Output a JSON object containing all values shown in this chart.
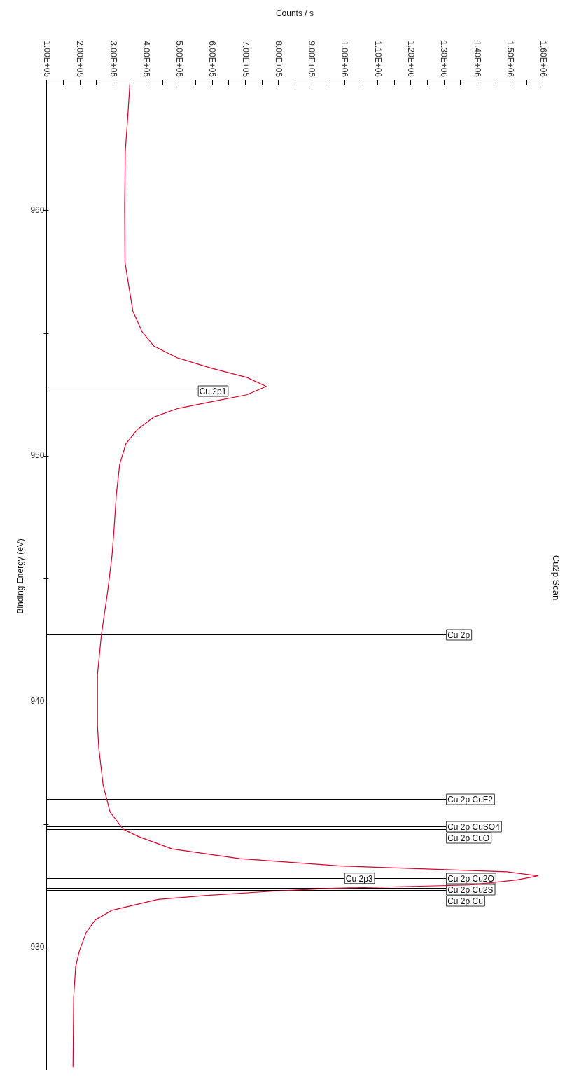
{
  "chart_data": {
    "type": "line",
    "orientation": "horizontal",
    "title": "Cu2p Scan",
    "xlabel": "Counts / s",
    "ylabel": "Binding Energy (eV)",
    "xlim": [
      100000,
      1600000
    ],
    "xticks": [
      {
        "value": 100000,
        "label": "1.00E+05"
      },
      {
        "value": 150000,
        "label": null
      },
      {
        "value": 200000,
        "label": "2.00E+05"
      },
      {
        "value": 250000,
        "label": null
      },
      {
        "value": 300000,
        "label": "3.00E+05"
      },
      {
        "value": 350000,
        "label": null
      },
      {
        "value": 400000,
        "label": "4.00E+05"
      },
      {
        "value": 450000,
        "label": null
      },
      {
        "value": 500000,
        "label": "5.00E+05"
      },
      {
        "value": 550000,
        "label": null
      },
      {
        "value": 600000,
        "label": "6.00E+05"
      },
      {
        "value": 650000,
        "label": null
      },
      {
        "value": 700000,
        "label": "7.00E+05"
      },
      {
        "value": 750000,
        "label": null
      },
      {
        "value": 800000,
        "label": "8.00E+05"
      },
      {
        "value": 850000,
        "label": null
      },
      {
        "value": 900000,
        "label": "9.00E+05"
      },
      {
        "value": 950000,
        "label": null
      },
      {
        "value": 1000000,
        "label": "1.00E+06"
      },
      {
        "value": 1050000,
        "label": null
      },
      {
        "value": 1100000,
        "label": "1.10E+06"
      },
      {
        "value": 1150000,
        "label": null
      },
      {
        "value": 1200000,
        "label": "1.20E+06"
      },
      {
        "value": 1250000,
        "label": null
      },
      {
        "value": 1300000,
        "label": "1.30E+06"
      },
      {
        "value": 1350000,
        "label": null
      },
      {
        "value": 1400000,
        "label": "1.40E+06"
      },
      {
        "value": 1450000,
        "label": null
      },
      {
        "value": 1500000,
        "label": "1.50E+06"
      },
      {
        "value": 1550000,
        "label": null
      },
      {
        "value": 1600000,
        "label": "1.60E+06"
      }
    ],
    "ylim": [
      925,
      965.2
    ],
    "yticks": [
      930,
      {
        "value": 935,
        "label": null
      },
      940,
      {
        "value": 945,
        "label": null
      },
      950,
      {
        "value": 955,
        "label": null
      },
      960
    ],
    "grid": false,
    "legend": false,
    "marker": "none",
    "line_style": "solid",
    "series": [
      {
        "color": "#d8002a",
        "x": [
          965.2,
          963.9,
          962.4,
          960.2,
          957.9,
          956.8,
          955.9,
          955.05,
          954.48,
          954.0,
          953.57,
          953.2,
          952.83,
          952.49,
          952.21,
          951.92,
          951.58,
          951.07,
          950.5,
          949.65,
          948.43,
          947.0,
          945.95,
          944.5,
          942.74,
          941.1,
          939.0,
          938.1,
          936.6,
          935.5,
          934.8,
          934.5,
          934.0,
          933.6,
          933.3,
          933.07,
          932.9,
          932.73,
          932.53,
          932.39,
          932.28,
          932.1,
          931.94,
          931.5,
          931.1,
          930.6,
          929.83,
          929.2,
          927.96,
          925.1
        ],
        "values": [
          352000,
          346000,
          338000,
          336000,
          337000,
          350000,
          361000,
          389000,
          424000,
          494000,
          599000,
          705000,
          764000,
          705000,
          599000,
          494000,
          424000,
          374000,
          340000,
          321000,
          311000,
          304000,
          298000,
          285000,
          266000,
          254000,
          254000,
          258000,
          271000,
          292000,
          332000,
          378000,
          479000,
          684000,
          989000,
          1491000,
          1585000,
          1520000,
          1379000,
          957000,
          789000,
          578000,
          437000,
          298000,
          247000,
          220000,
          199000,
          188000,
          182000,
          180000
        ]
      }
    ],
    "ref_lines": [
      {
        "axis": "y",
        "value": 952.66,
        "label": "Cu 2p1"
      },
      {
        "axis": "y",
        "value": 942.74,
        "label": "Cu 2p"
      },
      {
        "axis": "y",
        "value": 936.02,
        "label": "Cu 2p CuF2"
      },
      {
        "axis": "y",
        "value": 934.91,
        "label": "Cu 2p CuSO4"
      },
      {
        "axis": "y",
        "value": 934.81,
        "label": "Cu 2p CuO"
      },
      {
        "axis": "y",
        "value": 932.8,
        "label": "Cu 2p Cu2O"
      },
      {
        "axis": "y",
        "value": 932.4,
        "label": "Cu 2p Cu2S"
      },
      {
        "axis": "y",
        "value": 932.31,
        "label": "Cu 2p Cu"
      }
    ],
    "annotations": [
      {
        "text": "Cu 2p3",
        "x": 1000000,
        "y": 932.8
      }
    ]
  }
}
